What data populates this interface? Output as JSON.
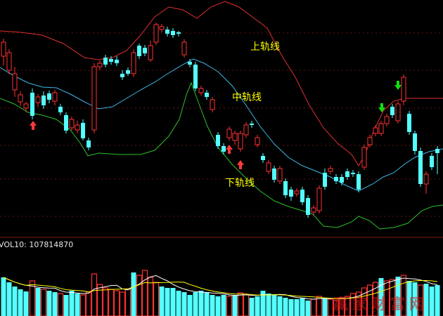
{
  "chart_data": {
    "type": "candlestick",
    "title": "",
    "colors": {
      "up": "#ff3232",
      "down": "#54ffff",
      "upper_band": "#e03030",
      "mid_band": "#3fb8e6",
      "lower_band": "#2ec02e",
      "vol_ma_a": "#ffffff",
      "vol_ma_b": "#ffff00",
      "buy_arrow": "#ff3a3a",
      "sell_arrow": "#11dd11",
      "dotted_grid": "#6a1010",
      "separator": "#8a1a1a"
    },
    "price_panel": {
      "ylim": [
        0,
        340
      ],
      "grid": "dotted",
      "band_labels": [
        {
          "text": "上轨线",
          "band": "upper"
        },
        {
          "text": "中轨线",
          "band": "mid"
        },
        {
          "text": "下轨线",
          "band": "lower"
        }
      ],
      "upper_band": [
        [
          0,
          44
        ],
        [
          30,
          46
        ],
        [
          60,
          50
        ],
        [
          90,
          62
        ],
        [
          120,
          82
        ],
        [
          140,
          85
        ],
        [
          160,
          82
        ],
        [
          180,
          72
        ],
        [
          200,
          50
        ],
        [
          220,
          24
        ],
        [
          240,
          10
        ],
        [
          260,
          14
        ],
        [
          280,
          26
        ],
        [
          300,
          10
        ],
        [
          320,
          2
        ],
        [
          340,
          10
        ],
        [
          360,
          25
        ],
        [
          380,
          40
        ],
        [
          400,
          78
        ],
        [
          420,
          110
        ],
        [
          440,
          150
        ],
        [
          460,
          182
        ],
        [
          480,
          204
        ],
        [
          500,
          220
        ],
        [
          510,
          236
        ],
        [
          520,
          218
        ],
        [
          530,
          190
        ],
        [
          545,
          158
        ],
        [
          560,
          144
        ],
        [
          575,
          140
        ],
        [
          590,
          140
        ],
        [
          610,
          140
        ],
        [
          630,
          140
        ]
      ],
      "mid_band": [
        [
          0,
          96
        ],
        [
          20,
          108
        ],
        [
          40,
          118
        ],
        [
          60,
          124
        ],
        [
          80,
          125
        ],
        [
          100,
          134
        ],
        [
          120,
          145
        ],
        [
          140,
          155
        ],
        [
          160,
          152
        ],
        [
          180,
          140
        ],
        [
          200,
          128
        ],
        [
          220,
          117
        ],
        [
          240,
          104
        ],
        [
          260,
          92
        ],
        [
          275,
          84
        ],
        [
          290,
          90
        ],
        [
          310,
          102
        ],
        [
          330,
          122
        ],
        [
          350,
          150
        ],
        [
          370,
          180
        ],
        [
          390,
          205
        ],
        [
          410,
          224
        ],
        [
          430,
          236
        ],
        [
          450,
          244
        ],
        [
          470,
          252
        ],
        [
          490,
          263
        ],
        [
          510,
          272
        ],
        [
          530,
          262
        ],
        [
          545,
          252
        ],
        [
          560,
          246
        ],
        [
          575,
          234
        ],
        [
          590,
          224
        ],
        [
          610,
          216
        ],
        [
          630,
          212
        ]
      ],
      "lower_band": [
        [
          0,
          140
        ],
        [
          20,
          148
        ],
        [
          40,
          160
        ],
        [
          60,
          164
        ],
        [
          80,
          170
        ],
        [
          100,
          185
        ],
        [
          115,
          205
        ],
        [
          125,
          222
        ],
        [
          140,
          218
        ],
        [
          170,
          220
        ],
        [
          200,
          220
        ],
        [
          220,
          214
        ],
        [
          240,
          194
        ],
        [
          255,
          170
        ],
        [
          265,
          135
        ],
        [
          272,
          118
        ],
        [
          280,
          140
        ],
        [
          295,
          180
        ],
        [
          310,
          210
        ],
        [
          330,
          234
        ],
        [
          350,
          254
        ],
        [
          370,
          272
        ],
        [
          390,
          286
        ],
        [
          410,
          294
        ],
        [
          430,
          300
        ],
        [
          445,
          305
        ],
        [
          460,
          322
        ],
        [
          480,
          324
        ],
        [
          500,
          316
        ],
        [
          510,
          308
        ],
        [
          525,
          314
        ],
        [
          540,
          326
        ],
        [
          560,
          324
        ],
        [
          580,
          318
        ],
        [
          600,
          300
        ],
        [
          615,
          294
        ],
        [
          630,
          292
        ]
      ],
      "candles": [
        [
          5,
          80,
          60,
          55,
          93
        ],
        [
          13,
          100,
          75,
          70,
          106
        ],
        [
          21,
          128,
          105,
          95,
          138
        ],
        [
          29,
          145,
          135,
          130,
          151
        ],
        [
          37,
          154,
          148,
          145,
          160
        ],
        [
          46,
          132,
          165,
          126,
          170
        ],
        [
          54,
          146,
          138,
          134,
          152
        ],
        [
          62,
          136,
          150,
          130,
          155
        ],
        [
          70,
          133,
          142,
          129,
          147
        ],
        [
          78,
          144,
          132,
          128,
          150
        ],
        [
          86,
          152,
          160,
          148,
          164
        ],
        [
          94,
          164,
          186,
          160,
          190
        ],
        [
          102,
          182,
          170,
          166,
          186
        ],
        [
          110,
          185,
          178,
          172,
          190
        ],
        [
          118,
          175,
          197,
          170,
          200
        ],
        [
          126,
          200,
          210,
          196,
          214
        ],
        [
          134,
          185,
          95,
          90,
          190
        ],
        [
          142,
          95,
          90,
          86,
          100
        ],
        [
          150,
          82,
          92,
          78,
          96
        ],
        [
          158,
          84,
          88,
          80,
          92
        ],
        [
          166,
          85,
          90,
          80,
          94
        ],
        [
          174,
          105,
          110,
          100,
          114
        ],
        [
          182,
          100,
          105,
          96,
          108
        ],
        [
          190,
          105,
          75,
          70,
          110
        ],
        [
          198,
          65,
          80,
          62,
          84
        ],
        [
          206,
          68,
          76,
          64,
          80
        ],
        [
          214,
          85,
          65,
          58,
          88
        ],
        [
          222,
          60,
          35,
          32,
          64
        ],
        [
          230,
          42,
          38,
          34,
          46
        ],
        [
          238,
          42,
          48,
          38,
          52
        ],
        [
          246,
          44,
          50,
          40,
          54
        ],
        [
          254,
          46,
          48,
          44,
          52
        ],
        [
          262,
          78,
          60,
          56,
          82
        ],
        [
          270,
          88,
          92,
          84,
          96
        ],
        [
          278,
          92,
          126,
          88,
          130
        ],
        [
          286,
          132,
          126,
          122,
          136
        ],
        [
          294,
          132,
          138,
          128,
          142
        ],
        [
          302,
          156,
          142,
          138,
          160
        ],
        [
          310,
          192,
          208,
          188,
          212
        ],
        [
          318,
          208,
          216,
          204,
          220
        ],
        [
          326,
          196,
          184,
          180,
          200
        ],
        [
          334,
          200,
          190,
          186,
          206
        ],
        [
          342,
          212,
          190,
          186,
          216
        ],
        [
          350,
          192,
          178,
          174,
          196
        ],
        [
          358,
          176,
          178,
          172,
          182
        ],
        [
          366,
          206,
          196,
          192,
          210
        ],
        [
          374,
          222,
          228,
          218,
          232
        ],
        [
          382,
          244,
          232,
          228,
          248
        ],
        [
          390,
          240,
          256,
          236,
          260
        ],
        [
          398,
          258,
          240,
          236,
          262
        ],
        [
          406,
          258,
          278,
          254,
          282
        ],
        [
          414,
          270,
          280,
          266,
          286
        ],
        [
          422,
          276,
          272,
          268,
          280
        ],
        [
          430,
          270,
          288,
          266,
          292
        ],
        [
          438,
          282,
          306,
          278,
          310
        ],
        [
          446,
          302,
          296,
          292,
          306
        ],
        [
          454,
          300,
          268,
          264,
          304
        ],
        [
          462,
          246,
          266,
          240,
          270
        ],
        [
          470,
          244,
          240,
          236,
          248
        ],
        [
          478,
          252,
          258,
          248,
          262
        ],
        [
          486,
          252,
          260,
          248,
          264
        ],
        [
          494,
          244,
          252,
          240,
          256
        ],
        [
          502,
          246,
          248,
          242,
          252
        ],
        [
          510,
          248,
          270,
          244,
          274
        ],
        [
          518,
          238,
          210,
          206,
          242
        ],
        [
          526,
          206,
          196,
          192,
          210
        ],
        [
          534,
          190,
          182,
          178,
          194
        ],
        [
          542,
          190,
          176,
          172,
          194
        ],
        [
          550,
          176,
          166,
          162,
          180
        ],
        [
          558,
          152,
          164,
          148,
          168
        ],
        [
          566,
          172,
          148,
          144,
          176
        ],
        [
          574,
          144,
          110,
          106,
          150
        ],
        [
          582,
          162,
          188,
          158,
          192
        ],
        [
          590,
          190,
          215,
          186,
          220
        ],
        [
          598,
          215,
          262,
          210,
          266
        ],
        [
          606,
          262,
          248,
          244,
          276
        ],
        [
          614,
          222,
          238,
          218,
          242
        ],
        [
          622,
          212,
          218,
          208,
          248
        ]
      ],
      "buy_arrows": [
        [
          47,
          172
        ],
        [
          326,
          206
        ],
        [
          342,
          228
        ]
      ],
      "sell_arrows": [
        [
          543,
          160
        ],
        [
          566,
          128
        ]
      ]
    },
    "volume_panel": {
      "title": "VOL10: 107814870",
      "bars": [
        [
          5,
          55,
          "down"
        ],
        [
          13,
          48,
          "down"
        ],
        [
          21,
          42,
          "down"
        ],
        [
          29,
          38,
          "down"
        ],
        [
          37,
          35,
          "down"
        ],
        [
          46,
          50,
          "up"
        ],
        [
          54,
          40,
          "down"
        ],
        [
          62,
          38,
          "up"
        ],
        [
          70,
          36,
          "down"
        ],
        [
          78,
          34,
          "down"
        ],
        [
          86,
          32,
          "up"
        ],
        [
          94,
          30,
          "down"
        ],
        [
          102,
          36,
          "down"
        ],
        [
          110,
          32,
          "down"
        ],
        [
          118,
          30,
          "up"
        ],
        [
          126,
          34,
          "up"
        ],
        [
          134,
          60,
          "up"
        ],
        [
          142,
          45,
          "up"
        ],
        [
          150,
          40,
          "up"
        ],
        [
          158,
          38,
          "up"
        ],
        [
          166,
          36,
          "up"
        ],
        [
          174,
          34,
          "up"
        ],
        [
          182,
          38,
          "up"
        ],
        [
          190,
          62,
          "down"
        ],
        [
          198,
          58,
          "up"
        ],
        [
          206,
          65,
          "up"
        ],
        [
          214,
          55,
          "up"
        ],
        [
          222,
          48,
          "up"
        ],
        [
          230,
          42,
          "down"
        ],
        [
          238,
          40,
          "down"
        ],
        [
          246,
          40,
          "down"
        ],
        [
          254,
          36,
          "down"
        ],
        [
          262,
          34,
          "down"
        ],
        [
          270,
          30,
          "down"
        ],
        [
          278,
          34,
          "down"
        ],
        [
          286,
          36,
          "down"
        ],
        [
          294,
          34,
          "down"
        ],
        [
          302,
          30,
          "down"
        ],
        [
          310,
          28,
          "down"
        ],
        [
          318,
          30,
          "down"
        ],
        [
          326,
          28,
          "up"
        ],
        [
          334,
          30,
          "down"
        ],
        [
          342,
          33,
          "up"
        ],
        [
          350,
          30,
          "up"
        ],
        [
          358,
          26,
          "down"
        ],
        [
          366,
          28,
          "down"
        ],
        [
          374,
          36,
          "down"
        ],
        [
          382,
          32,
          "down"
        ],
        [
          390,
          30,
          "down"
        ],
        [
          398,
          28,
          "down"
        ],
        [
          406,
          26,
          "down"
        ],
        [
          414,
          24,
          "down"
        ],
        [
          422,
          24,
          "down"
        ],
        [
          430,
          26,
          "down"
        ],
        [
          438,
          22,
          "down"
        ],
        [
          446,
          24,
          "up"
        ],
        [
          454,
          28,
          "up"
        ],
        [
          462,
          26,
          "down"
        ],
        [
          470,
          24,
          "up"
        ],
        [
          478,
          22,
          "up"
        ],
        [
          486,
          26,
          "up"
        ],
        [
          494,
          28,
          "up"
        ],
        [
          502,
          32,
          "up"
        ],
        [
          510,
          34,
          "up"
        ],
        [
          518,
          40,
          "up"
        ],
        [
          526,
          44,
          "up"
        ],
        [
          534,
          48,
          "up"
        ],
        [
          542,
          54,
          "down"
        ],
        [
          550,
          50,
          "up"
        ],
        [
          558,
          52,
          "up"
        ],
        [
          566,
          56,
          "down"
        ],
        [
          574,
          58,
          "up"
        ],
        [
          582,
          50,
          "down"
        ],
        [
          590,
          48,
          "down"
        ],
        [
          598,
          44,
          "up"
        ],
        [
          606,
          46,
          "down"
        ],
        [
          614,
          42,
          "down"
        ],
        [
          622,
          44,
          "down"
        ]
      ]
    },
    "watermark": "赢家财富网"
  }
}
